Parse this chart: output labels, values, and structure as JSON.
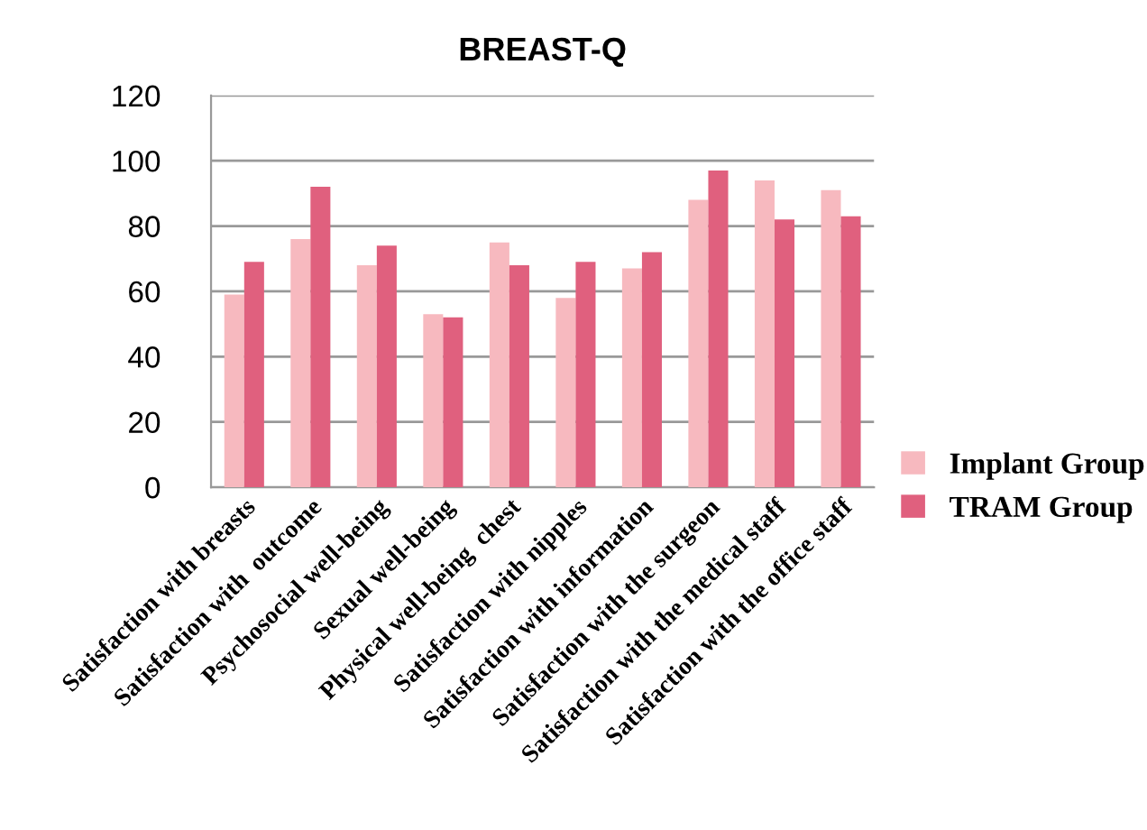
{
  "chart_data": {
    "type": "bar",
    "title": "BREAST-Q",
    "categories": [
      "Satisfaction with breasts",
      "Satisfaction with  outcome",
      "Psychosocial well-being",
      "Sexual well-being",
      "Physical well-being  chest",
      "Satisfaction with nipples",
      "Satisfaction with information",
      "Satisfaction with the surgeon",
      "Satisfaction with the medical staff",
      "Satisfaction with the office staff"
    ],
    "series": [
      {
        "name": "Implant Group",
        "color": "#f7b9bf",
        "values": [
          59,
          76,
          68,
          53,
          75,
          58,
          67,
          88,
          94,
          91
        ]
      },
      {
        "name": "TRAM Group",
        "color": "#e0607e",
        "values": [
          69,
          92,
          74,
          52,
          68,
          69,
          72,
          97,
          82,
          83
        ]
      }
    ],
    "ylim": [
      0,
      120
    ],
    "yticks": [
      0,
      20,
      40,
      60,
      80,
      100,
      120
    ],
    "grid": "y",
    "legend": "right"
  }
}
